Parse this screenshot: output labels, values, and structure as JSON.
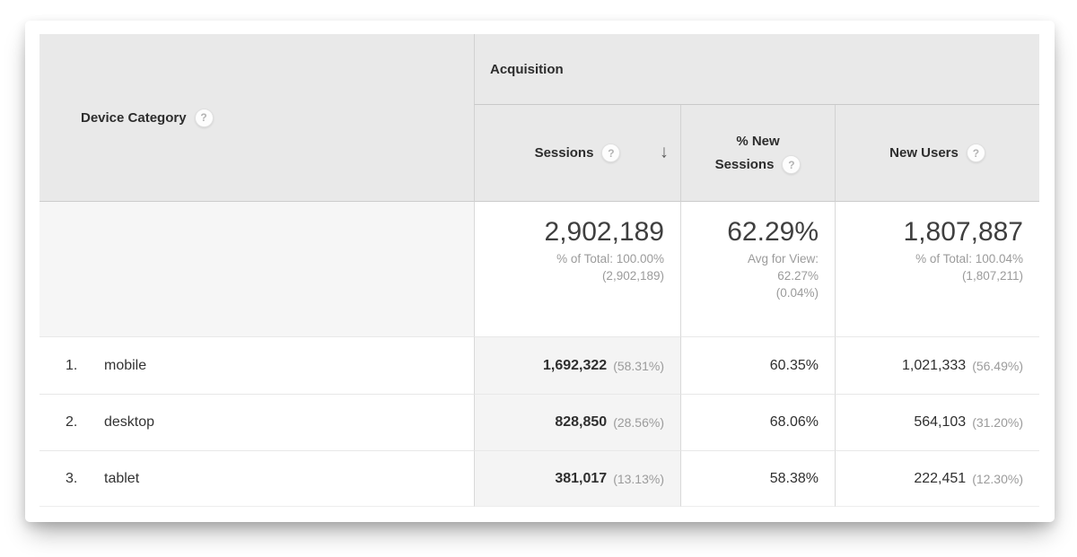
{
  "table": {
    "dimension_header": {
      "label": "Device Category"
    },
    "group_header": {
      "label": "Acquisition"
    },
    "columns": [
      {
        "label": "Sessions",
        "sorted": "desc"
      },
      {
        "label": "% New Sessions",
        "sorted": ""
      },
      {
        "label": "New Users",
        "sorted": ""
      }
    ],
    "summary": {
      "sessions": {
        "value": "2,902,189",
        "line1": "% of Total: 100.00%",
        "line2": "(2,902,189)"
      },
      "pct_new_sessions": {
        "value": "62.29%",
        "line1": "Avg for View:",
        "line2": "62.27%",
        "line3": "(0.04%)"
      },
      "new_users": {
        "value": "1,807,887",
        "line1": "% of Total: 100.04%",
        "line2": "(1,807,211)"
      }
    },
    "rows": [
      {
        "rank": "1.",
        "device": "mobile",
        "sessions": "1,692,322",
        "sessions_pct": "(58.31%)",
        "pct_new_sessions": "60.35%",
        "new_users": "1,021,333",
        "new_users_pct": "(56.49%)"
      },
      {
        "rank": "2.",
        "device": "desktop",
        "sessions": "828,850",
        "sessions_pct": "(28.56%)",
        "pct_new_sessions": "68.06%",
        "new_users": "564,103",
        "new_users_pct": "(31.20%)"
      },
      {
        "rank": "3.",
        "device": "tablet",
        "sessions": "381,017",
        "sessions_pct": "(13.13%)",
        "pct_new_sessions": "58.38%",
        "new_users": "222,451",
        "new_users_pct": "(12.30%)"
      }
    ]
  },
  "icons": {
    "help": "?",
    "sort_desc": "↓"
  },
  "colors": {
    "header_bg": "#e9e9e9",
    "summary_dim_bg": "#f6f6f6",
    "sorted_col_bg": "#f4f4f4",
    "grid_line": "#d9d9d9",
    "row_line": "#e8e8e8",
    "muted_text": "#9b9b9b"
  }
}
